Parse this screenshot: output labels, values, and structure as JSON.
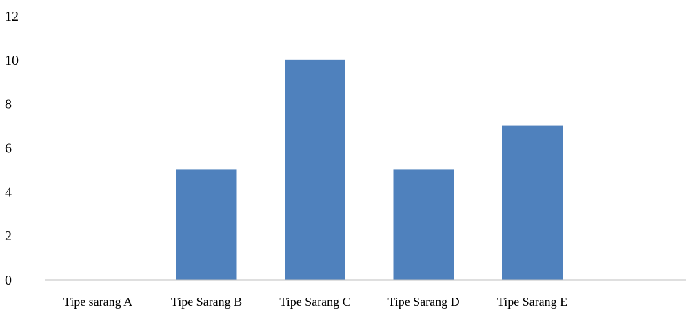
{
  "chart_data": {
    "type": "bar",
    "title": "",
    "xlabel": "",
    "ylabel": "",
    "categories": [
      "Tipe sarang A",
      "Tipe Sarang B",
      "Tipe Sarang C",
      "Tipe Sarang D",
      "Tipe Sarang E"
    ],
    "values": [
      0,
      5,
      10,
      5,
      7
    ],
    "ylim": [
      0,
      12
    ],
    "yticks": [
      0,
      2,
      4,
      6,
      8,
      10,
      12
    ],
    "grid": false,
    "legend": "none",
    "colors": {
      "bar": "#4f81bd",
      "axis": "#bfbfbf",
      "text": "#000000"
    }
  }
}
